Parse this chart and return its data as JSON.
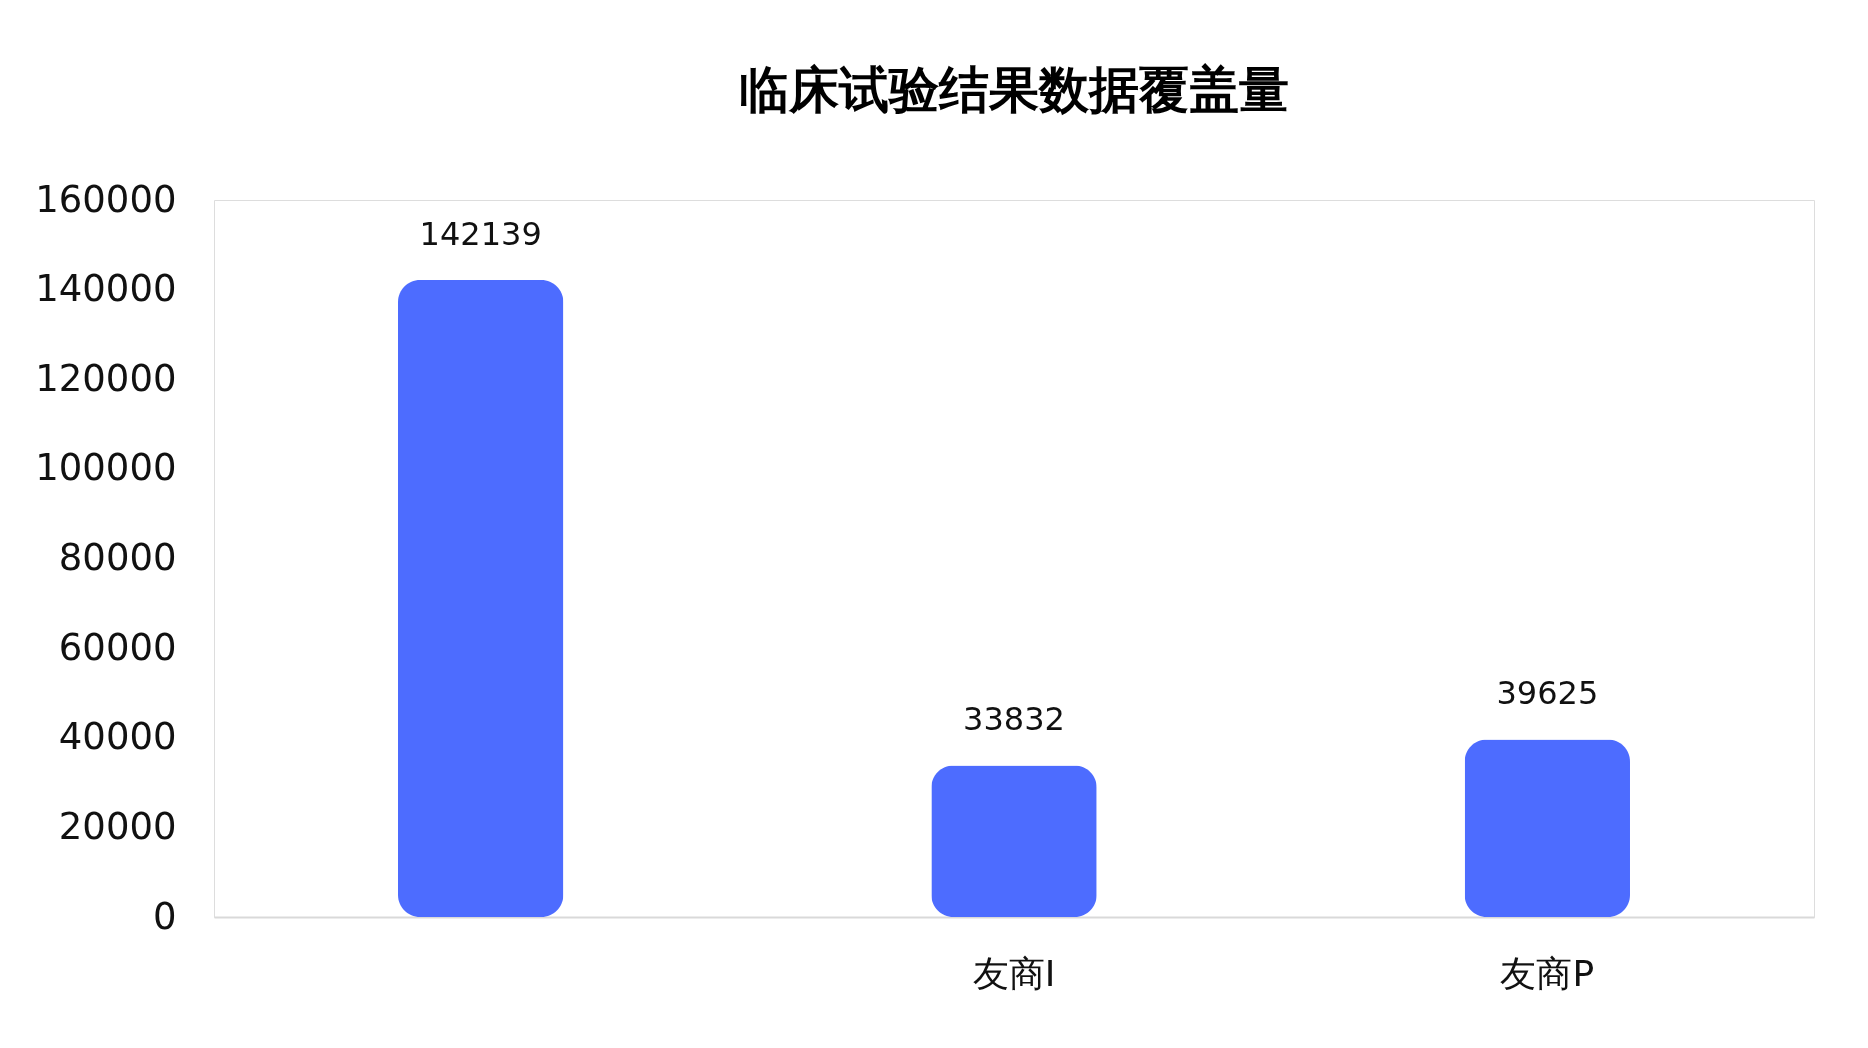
{
  "chart_data": {
    "type": "bar",
    "title": "临床试验结果数据覆盖量",
    "categories": [
      null,
      "友商I",
      "友商P"
    ],
    "values": [
      142139,
      33832,
      39625
    ],
    "color": "#4d6cff",
    "ylim": [
      0,
      160000
    ],
    "yticks": [
      0,
      20000,
      40000,
      60000,
      80000,
      100000,
      120000,
      140000,
      160000
    ],
    "grid": false,
    "data_labels": true
  }
}
